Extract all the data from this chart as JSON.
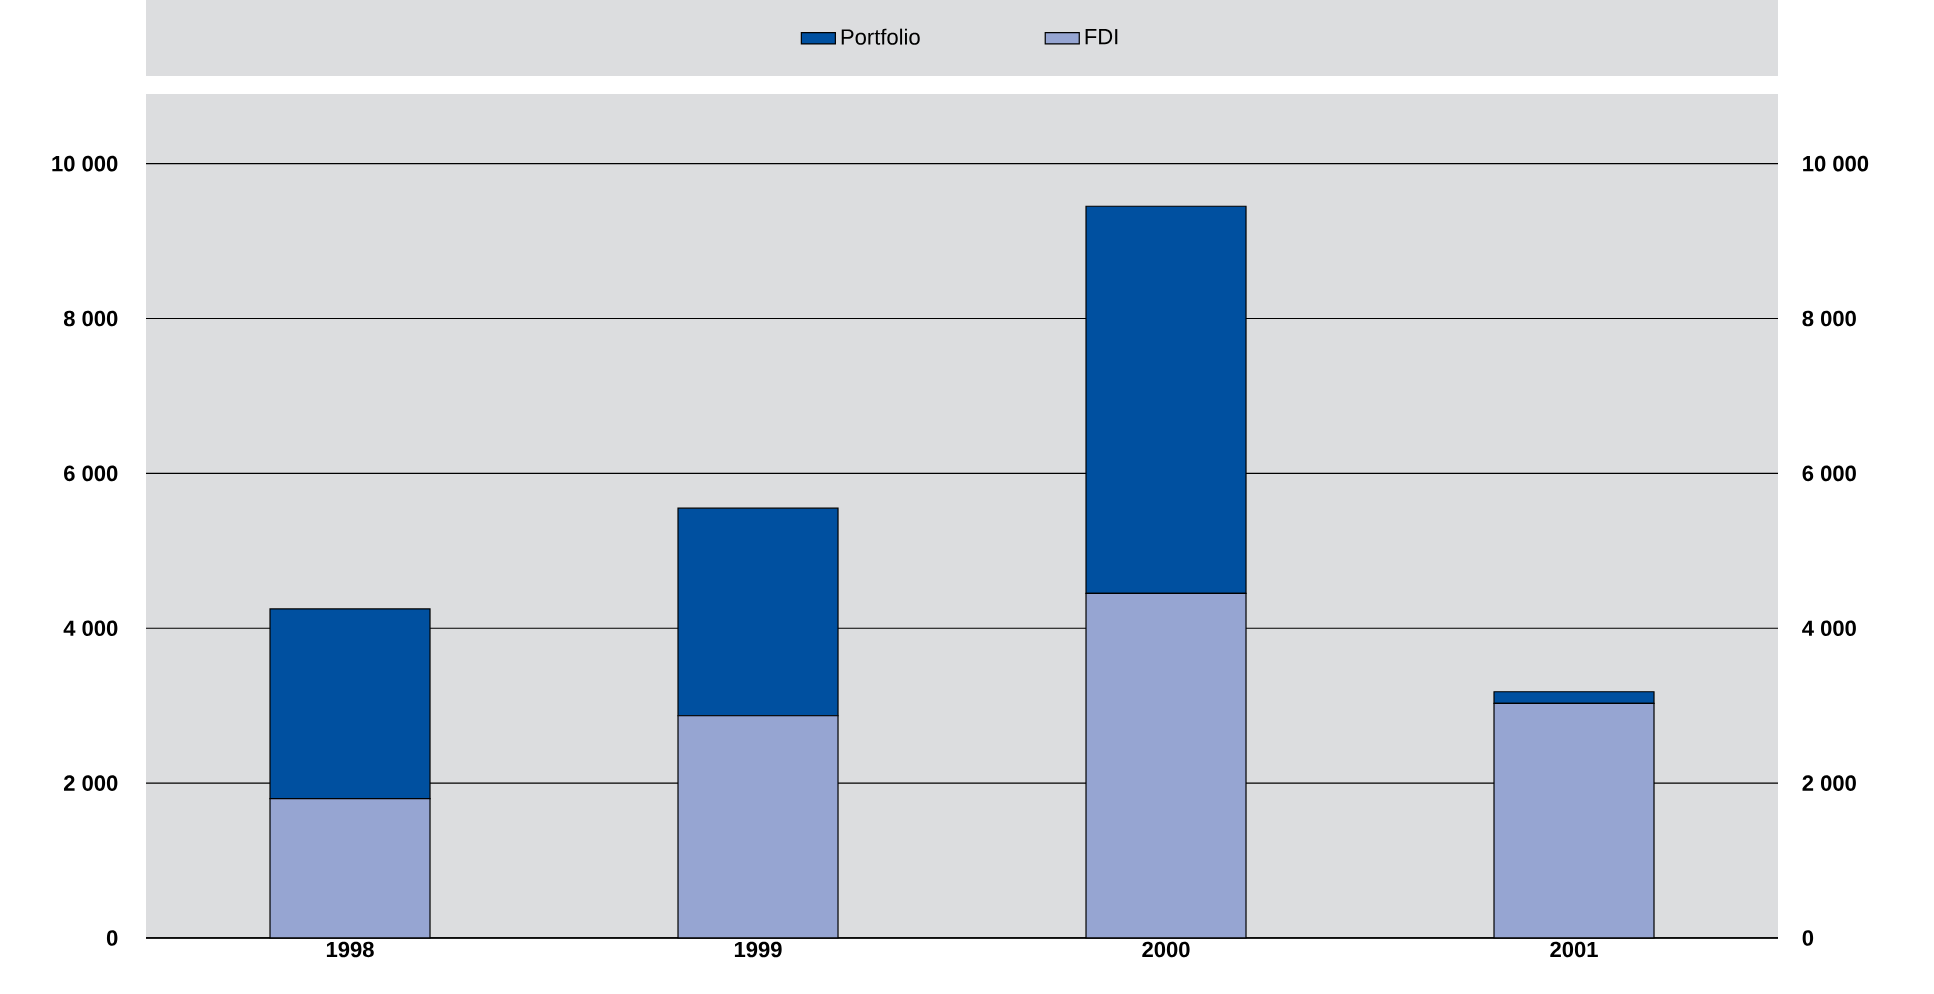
{
  "chart_data": {
    "type": "bar",
    "stacked": true,
    "categories": [
      "1998",
      "1999",
      "2000",
      "2001"
    ],
    "series": [
      {
        "name": "FDI",
        "color": "#96a5d2",
        "values": [
          1800,
          2870,
          4450,
          3030
        ]
      },
      {
        "name": "Portfolio",
        "color": "#0050a0",
        "values": [
          2450,
          2680,
          5000,
          150
        ]
      }
    ],
    "ylim": [
      0,
      10900
    ],
    "yticks": [
      {
        "value": 0,
        "label": "0"
      },
      {
        "value": 2000,
        "label": "2 000"
      },
      {
        "value": 4000,
        "label": "4 000"
      },
      {
        "value": 6000,
        "label": "6 000"
      },
      {
        "value": 8000,
        "label": "8 000"
      },
      {
        "value": 10000,
        "label": "10 000"
      }
    ],
    "y2lim": [
      0,
      10900
    ],
    "y2ticks": [
      {
        "value": 0,
        "label": "0"
      },
      {
        "value": 2000,
        "label": "2 000"
      },
      {
        "value": 4000,
        "label": "4 000"
      },
      {
        "value": 6000,
        "label": "6 000"
      },
      {
        "value": 8000,
        "label": "8 000"
      },
      {
        "value": 10000,
        "label": "10 000"
      }
    ],
    "grid": "y",
    "legend": "top"
  }
}
